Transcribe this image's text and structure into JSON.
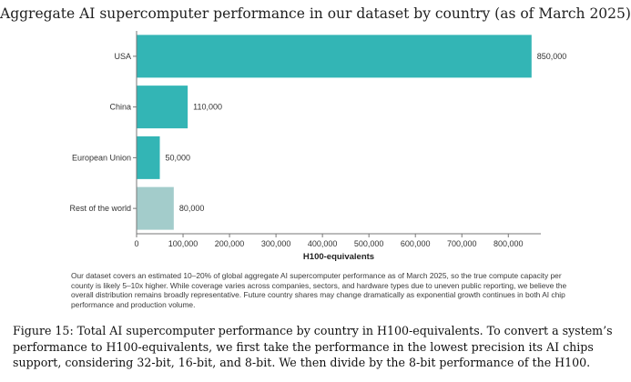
{
  "chart_data": {
    "type": "bar",
    "orientation": "horizontal",
    "title": "Aggregate AI supercomputer performance in our dataset by country (as of March 2025)",
    "xlabel": "H100-equivalents",
    "ylabel": "",
    "categories": [
      "USA",
      "China",
      "European Union",
      "Rest of the world"
    ],
    "values": [
      850000,
      110000,
      50000,
      80000
    ],
    "value_labels": [
      "850,000",
      "110,000",
      "50,000",
      "80,000"
    ],
    "bar_colors": [
      "#33b5b5",
      "#33b5b5",
      "#33b5b5",
      "#a3cccb"
    ],
    "xlim": [
      0,
      870000
    ],
    "xticks": [
      0,
      100000,
      200000,
      300000,
      400000,
      500000,
      600000,
      700000,
      800000
    ],
    "xtick_labels": [
      "0",
      "100,000",
      "200,000",
      "300,000",
      "400,000",
      "500,000",
      "600,000",
      "700,000",
      "800,000"
    ],
    "grid": false,
    "legend": "none"
  },
  "note_text": "Our dataset covers an estimated 10–20% of global aggregate AI supercomputer performance as of March 2025, so the true compute capacity per county is likely 5–10x higher. While coverage varies across companies, sectors, and hardware types due to uneven public reporting, we believe the overall distribution remains broadly representative. Future country shares may change dramatically as exponential growth continues in both AI chip performance and production volume.",
  "caption_text": "Figure 15: Total AI supercomputer performance by country in H100-equivalents. To convert a system’s performance to H100-equivalents, we first take the performance in the lowest precision its AI chips support, considering 32-bit, 16-bit, and 8-bit. We then divide by the 8-bit performance of the H100."
}
